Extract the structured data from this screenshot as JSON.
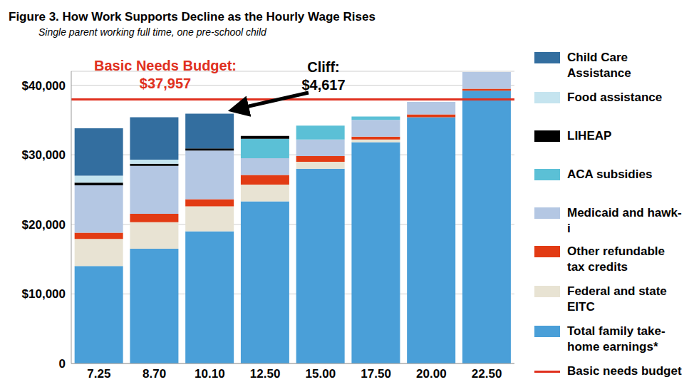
{
  "chart_data": {
    "type": "bar",
    "stacked": true,
    "grid": true,
    "legend": "right",
    "title": "Figure 3. How Work Supports Decline as the Hourly Wage Rises",
    "subtitle": "Single parent working full time, one pre-school child",
    "categories": [
      "7.25",
      "8.70",
      "10.10",
      "12.50",
      "15.00",
      "17.50",
      "20.00",
      "22.50"
    ],
    "ylim": [
      0,
      42000
    ],
    "yticks": [
      0,
      {
        "value": 10000,
        "label": "$10,000"
      },
      {
        "value": 20000,
        "label": "$20,000"
      },
      {
        "value": 30000,
        "label": "$30,000"
      },
      {
        "value": 40000,
        "label": "$40,000"
      }
    ],
    "series": [
      {
        "name": "Total family take-home earnings*",
        "color": "#4a9fd8",
        "values": [
          14000,
          16500,
          19000,
          23300,
          28000,
          31800,
          35400,
          39200
        ]
      },
      {
        "name": "Federal and state EITC",
        "color": "#e8e3d3",
        "values": [
          3900,
          3800,
          3600,
          2400,
          1000,
          400,
          0,
          0
        ]
      },
      {
        "name": "Other refundable tax credits",
        "color": "#e23b14",
        "values": [
          900,
          1200,
          1000,
          1400,
          800,
          400,
          400,
          300
        ]
      },
      {
        "name": "Medicaid and hawk-i",
        "color": "#b4c7e3",
        "values": [
          6800,
          6900,
          7000,
          2400,
          2400,
          2400,
          1800,
          2400
        ]
      },
      {
        "name": "ACA subsidies",
        "color": "#5bc0d6",
        "values": [
          0,
          0,
          0,
          2800,
          2000,
          500,
          0,
          0
        ]
      },
      {
        "name": "LIHEAP",
        "color": "#000000",
        "values": [
          400,
          300,
          300,
          400,
          0,
          0,
          0,
          0
        ]
      },
      {
        "name": "Food assistance",
        "color": "#c5e4ef",
        "values": [
          1000,
          600,
          0,
          0,
          0,
          0,
          0,
          0
        ]
      },
      {
        "name": "Child Care Assistance",
        "color": "#336e9f",
        "values": [
          6800,
          6100,
          5000,
          0,
          0,
          0,
          0,
          0
        ]
      }
    ],
    "reference_line": {
      "name": "Basic needs budget",
      "title": "Basic Needs Budget:",
      "value": 37957,
      "label": "$37,957",
      "color": "#e0301e"
    },
    "annotation": {
      "title": "Cliff:",
      "value": 4617,
      "label": "$4,617",
      "category": "10.10"
    }
  }
}
